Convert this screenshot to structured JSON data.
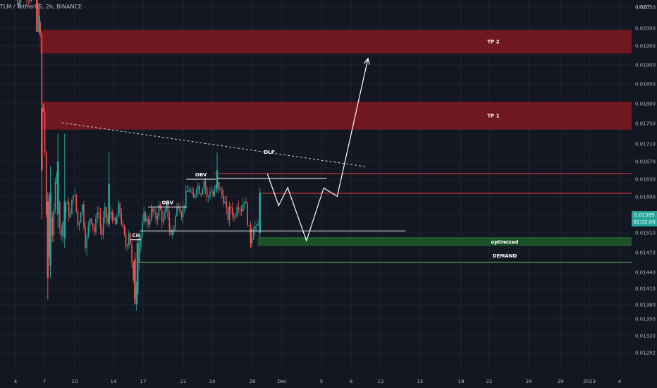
{
  "header": {
    "symbol_line": "TLM / TetherUS, 2h, BINANCE",
    "currency": "USDT"
  },
  "price_badge": {
    "price": "0.01589",
    "countdown": "01:02:00",
    "color": "#26a69a"
  },
  "chart_data": {
    "type": "candlestick",
    "symbol": "TLM / TetherUS",
    "interval": "2h",
    "exchange": "BINANCE",
    "y_unit": "USDT",
    "ylim": [
      0.0127,
      0.0212
    ],
    "grid": true,
    "y_ticks": [
      "0.02050",
      "0.02000",
      "0.01950",
      "0.01900",
      "0.01850",
      "0.01800",
      "0.01750",
      "0.01710",
      "0.01670",
      "0.01630",
      "0.01590",
      "0.01550",
      "0.01510",
      "0.01470",
      "0.01440",
      "0.01410",
      "0.01380",
      "0.01350",
      "0.01320",
      "0.01292"
    ],
    "x_ticks": [
      "4",
      "7",
      "10",
      "14",
      "17",
      "21",
      "24",
      "28",
      "Dec",
      "5",
      "8",
      "12",
      "15",
      "19",
      "22",
      "26",
      "29",
      "2023",
      "4"
    ],
    "price_path": [
      [
        0.0,
        0.0208
      ],
      [
        0.3,
        0.0206
      ],
      [
        1.0,
        0.0209
      ],
      [
        2.0,
        0.0207
      ],
      [
        2.8,
        0.021
      ],
      [
        3.2,
        0.0199
      ],
      [
        3.3,
        0.0203
      ],
      [
        3.6,
        0.0175
      ],
      [
        3.8,
        0.0179
      ],
      [
        4.0,
        0.0166
      ],
      [
        4.3,
        0.0142
      ],
      [
        4.5,
        0.016
      ],
      [
        5.0,
        0.015
      ],
      [
        5.5,
        0.0167
      ],
      [
        6.0,
        0.015
      ],
      [
        6.8,
        0.0158
      ],
      [
        7.3,
        0.0154
      ],
      [
        7.8,
        0.0161
      ],
      [
        8.4,
        0.0152
      ],
      [
        8.9,
        0.0158
      ],
      [
        9.4,
        0.0148
      ],
      [
        10.0,
        0.0155
      ],
      [
        10.6,
        0.0151
      ],
      [
        11.0,
        0.0157
      ],
      [
        11.5,
        0.015
      ],
      [
        11.9,
        0.0156
      ],
      [
        12.3,
        0.0153
      ],
      [
        12.8,
        0.0156
      ],
      [
        13.3,
        0.0152
      ],
      [
        13.8,
        0.0157
      ],
      [
        14.3,
        0.0152
      ],
      [
        14.8,
        0.0148
      ],
      [
        15.2,
        0.0152
      ],
      [
        15.6,
        0.0144
      ],
      [
        16.0,
        0.0138
      ],
      [
        16.3,
        0.0146
      ],
      [
        16.7,
        0.015
      ],
      [
        17.2,
        0.0155
      ],
      [
        17.7,
        0.0153
      ],
      [
        18.2,
        0.0156
      ],
      [
        18.7,
        0.0154
      ],
      [
        19.2,
        0.0157
      ],
      [
        19.7,
        0.0153
      ],
      [
        20.2,
        0.0157
      ],
      [
        20.7,
        0.015
      ],
      [
        21.2,
        0.0153
      ],
      [
        21.7,
        0.0158
      ],
      [
        22.2,
        0.0155
      ],
      [
        22.7,
        0.0159
      ],
      [
        23.2,
        0.0161
      ],
      [
        23.7,
        0.0158
      ],
      [
        24.2,
        0.0162
      ],
      [
        24.7,
        0.016
      ],
      [
        25.2,
        0.0163
      ],
      [
        25.6,
        0.0158
      ],
      [
        26.0,
        0.0161
      ],
      [
        26.4,
        0.0159
      ],
      [
        26.9,
        0.0162
      ],
      [
        27.4,
        0.016
      ],
      [
        27.9,
        0.0158
      ],
      [
        28.3,
        0.0154
      ],
      [
        28.7,
        0.0157
      ],
      [
        29.2,
        0.0154
      ],
      [
        29.6,
        0.0158
      ],
      [
        30.1,
        0.0156
      ],
      [
        30.6,
        0.0159
      ],
      [
        31.0,
        0.0153
      ],
      [
        31.4,
        0.0149
      ],
      [
        31.8,
        0.0153
      ],
      [
        32.3,
        0.0151
      ],
      [
        32.6,
        0.016
      ]
    ],
    "highlight_candles": [
      {
        "x": 2.9,
        "open": 0.0207,
        "close": 0.0199,
        "high": 0.0209,
        "low": 0.0199,
        "dir": "down"
      },
      {
        "x": 3.2,
        "open": 0.0199,
        "close": 0.0203,
        "high": 0.0206,
        "low": 0.0198,
        "dir": "up"
      },
      {
        "x": 3.55,
        "open": 0.0179,
        "close": 0.0165,
        "high": 0.0181,
        "low": 0.0154,
        "dir": "down"
      },
      {
        "x": 4.35,
        "open": 0.0158,
        "close": 0.0143,
        "high": 0.016,
        "low": 0.0139,
        "dir": "down"
      },
      {
        "x": 4.7,
        "open": 0.0145,
        "close": 0.016,
        "high": 0.0166,
        "low": 0.0143,
        "dir": "up"
      },
      {
        "x": 5.7,
        "open": 0.0155,
        "close": 0.0167,
        "high": 0.0173,
        "low": 0.0152,
        "dir": "up"
      },
      {
        "x": 6.6,
        "open": 0.015,
        "close": 0.0158,
        "high": 0.0173,
        "low": 0.0148,
        "dir": "up"
      },
      {
        "x": 12.5,
        "open": 0.0153,
        "close": 0.0162,
        "high": 0.0169,
        "low": 0.0152,
        "dir": "up"
      },
      {
        "x": 15.95,
        "open": 0.0146,
        "close": 0.0139,
        "high": 0.0147,
        "low": 0.0138,
        "dir": "down"
      },
      {
        "x": 16.3,
        "open": 0.014,
        "close": 0.0149,
        "high": 0.015,
        "low": 0.0138,
        "dir": "up"
      },
      {
        "x": 26.9,
        "open": 0.0161,
        "close": 0.0165,
        "high": 0.0169,
        "low": 0.016,
        "dir": "up"
      },
      {
        "x": 31.4,
        "open": 0.0152,
        "close": 0.0149,
        "high": 0.0153,
        "low": 0.0148,
        "dir": "down"
      },
      {
        "x": 32.6,
        "open": 0.0151,
        "close": 0.016,
        "high": 0.0161,
        "low": 0.015,
        "dir": "up"
      }
    ],
    "zones": [
      {
        "label": "TP 2",
        "y_top": 0.01995,
        "y_bottom": 0.0193,
        "x_start": 3.3,
        "color": "#801922"
      },
      {
        "label": "TP 1",
        "y_top": 0.01805,
        "y_bottom": 0.01738,
        "x_start": 3.5,
        "color": "#801922"
      },
      {
        "label": "optimized",
        "y_top": 0.015,
        "y_bottom": 0.01483,
        "x_start": 32.3,
        "color": "#1e5b2a"
      }
    ],
    "demand": {
      "label": "DEMAND",
      "y_top": 0.0151,
      "y_bottom": 0.01455,
      "x_start": 16.5
    },
    "levels": [
      {
        "price": 0.01643,
        "x_start": 26.5,
        "color": "#f23645"
      },
      {
        "price": 0.01598,
        "x_start": 32.9,
        "color": "#f23645"
      },
      {
        "price": 0.015,
        "x_start": 32.5,
        "color": "#2e7d32"
      }
    ],
    "annotations": [
      {
        "label": "OBV",
        "price": 0.01567,
        "x_start": 17.7,
        "x_end": 22.9
      },
      {
        "label": "OBV",
        "price": 0.0163,
        "x_start": 22.8,
        "x_end": 26.7
      },
      {
        "label": "",
        "price": 0.01632,
        "x_start": 26.9,
        "x_end": 41.5
      },
      {
        "label": "CH",
        "price": 0.01496,
        "x_start": 15.4,
        "x_end": 16.8
      },
      {
        "label": "",
        "price": 0.01514,
        "x_start": 16.6,
        "x_end": 52.0
      }
    ],
    "trendline": {
      "label": "DLP",
      "x_start": 6.2,
      "price_start": 0.01752,
      "x_end": 46.9,
      "price_end": 0.01658,
      "style": "dashed"
    },
    "projection": {
      "points": [
        [
          33.6,
          0.01642
        ],
        [
          35.1,
          0.0157
        ],
        [
          36.3,
          0.01611
        ],
        [
          38.8,
          0.01494
        ],
        [
          41.1,
          0.0161
        ],
        [
          42.9,
          0.01591
        ],
        [
          47.0,
          0.01917
        ]
      ],
      "color": "#ffffff"
    },
    "last_price": 0.01589
  }
}
